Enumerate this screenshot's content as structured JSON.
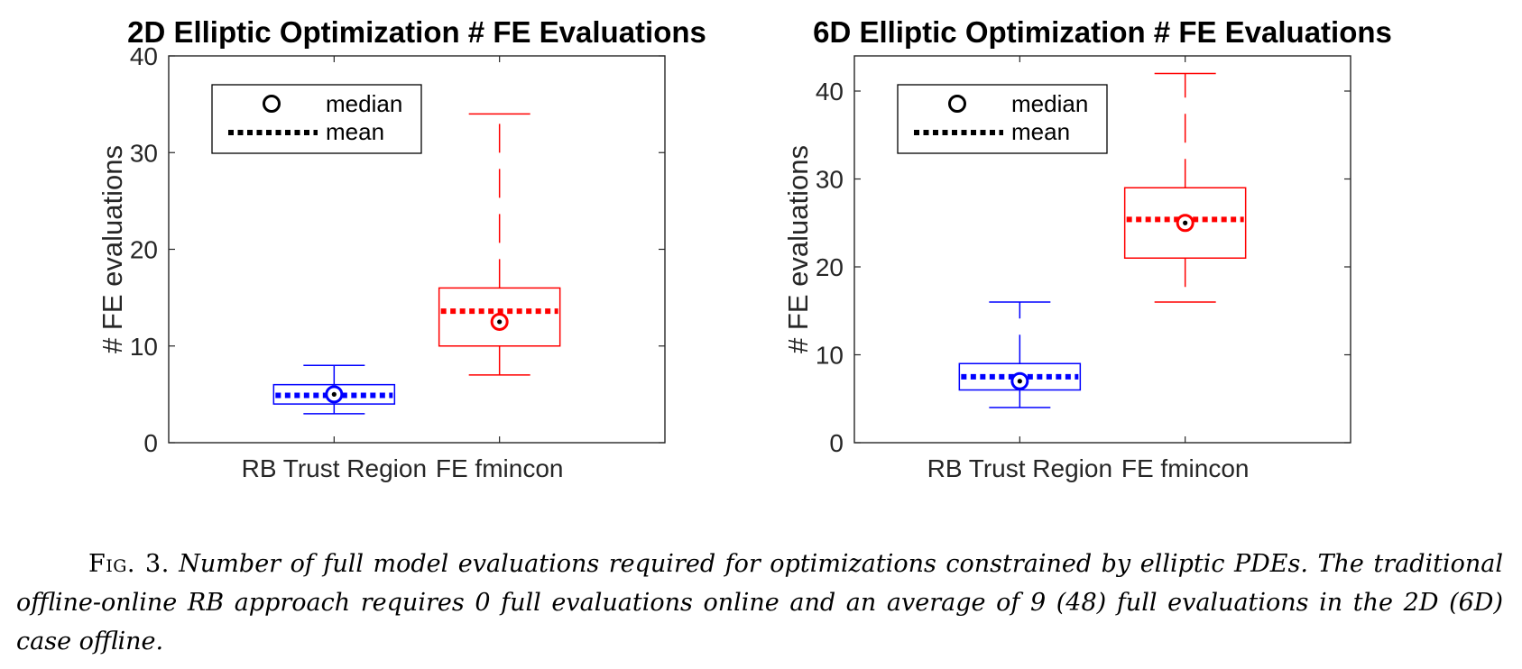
{
  "chart_data": [
    {
      "type": "box",
      "title": "2D Elliptic Optimization # FE Evaluations",
      "xlabel": "",
      "ylabel": "# FE evaluations",
      "categories": [
        "RB Trust Region",
        "FE fmincon"
      ],
      "ylim": [
        0,
        40
      ],
      "yticks": [
        "0",
        "10",
        "20",
        "30",
        "40"
      ],
      "series": [
        {
          "category": "RB Trust Region",
          "color": "#0000ff",
          "min": 3,
          "q1": 4,
          "median": 5,
          "q3": 6,
          "max": 8,
          "mean": 4.9
        },
        {
          "category": "FE fmincon",
          "color": "#ff0000",
          "min": 7,
          "q1": 10,
          "median": 12.5,
          "q3": 16,
          "max": 34,
          "mean": 13.6
        }
      ],
      "legend": {
        "placement": "top-left",
        "entries": [
          "median",
          "mean"
        ]
      }
    },
    {
      "type": "box",
      "title": "6D Elliptic Optimization # FE Evaluations",
      "xlabel": "",
      "ylabel": "# FE evaluations",
      "categories": [
        "RB Trust Region",
        "FE fmincon"
      ],
      "ylim": [
        0,
        44
      ],
      "yticks": [
        "0",
        "10",
        "20",
        "30",
        "40"
      ],
      "series": [
        {
          "category": "RB Trust Region",
          "color": "#0000ff",
          "min": 4,
          "q1": 6,
          "median": 7,
          "q3": 9,
          "max": 16,
          "mean": 7.5
        },
        {
          "category": "FE fmincon",
          "color": "#ff0000",
          "min": 16,
          "q1": 21,
          "median": 25,
          "q3": 29,
          "max": 42,
          "mean": 25.4
        }
      ],
      "legend": {
        "placement": "top-left",
        "entries": [
          "median",
          "mean"
        ]
      }
    }
  ],
  "caption": {
    "label": "Fig. 3.",
    "text": "Number of full model evaluations required for optimizations constrained by elliptic PDEs. The traditional offline-online RB approach requires 0 full evaluations online and an average of 9 (48) full evaluations in the 2D (6D) case offline."
  }
}
